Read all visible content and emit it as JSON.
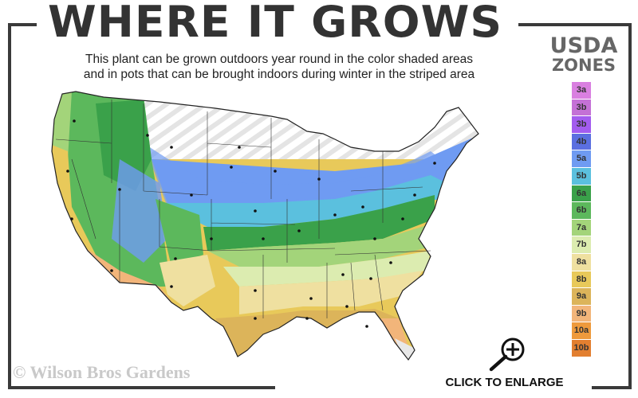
{
  "header": {
    "title": "WHERE IT GROWS",
    "subtitle_line1": "This plant can be grown outdoors year round in the color shaded areas",
    "subtitle_line2": "and in pots that can be brought indoors during winter in the striped area"
  },
  "legend": {
    "title_line1": "USDA",
    "title_line2": "ZONES",
    "zones": [
      {
        "label": "3a",
        "color": "#d97fe0"
      },
      {
        "label": "3b",
        "color": "#c471d6"
      },
      {
        "label": "3b",
        "color": "#a35cef"
      },
      {
        "label": "4b",
        "color": "#5b6fe0"
      },
      {
        "label": "5a",
        "color": "#6f9bf2"
      },
      {
        "label": "5b",
        "color": "#5bc0de"
      },
      {
        "label": "6a",
        "color": "#3aa14a"
      },
      {
        "label": "6b",
        "color": "#5cb85c"
      },
      {
        "label": "7a",
        "color": "#a3d47a"
      },
      {
        "label": "7b",
        "color": "#dcecb0"
      },
      {
        "label": "8a",
        "color": "#efe0a0"
      },
      {
        "label": "8b",
        "color": "#e8c95a"
      },
      {
        "label": "9a",
        "color": "#dcb45a"
      },
      {
        "label": "9b",
        "color": "#f2b57a"
      },
      {
        "label": "10a",
        "color": "#ee9a3c"
      },
      {
        "label": "10b",
        "color": "#e27f30"
      }
    ]
  },
  "footer": {
    "copyright": "© Wilson Bros Gardens",
    "enlarge_label": "CLICK TO ENLARGE",
    "enlarge_icon": "zoom-in-magnifier-icon"
  },
  "colors": {
    "frame": "#3a3a3a",
    "title": "#333333"
  }
}
